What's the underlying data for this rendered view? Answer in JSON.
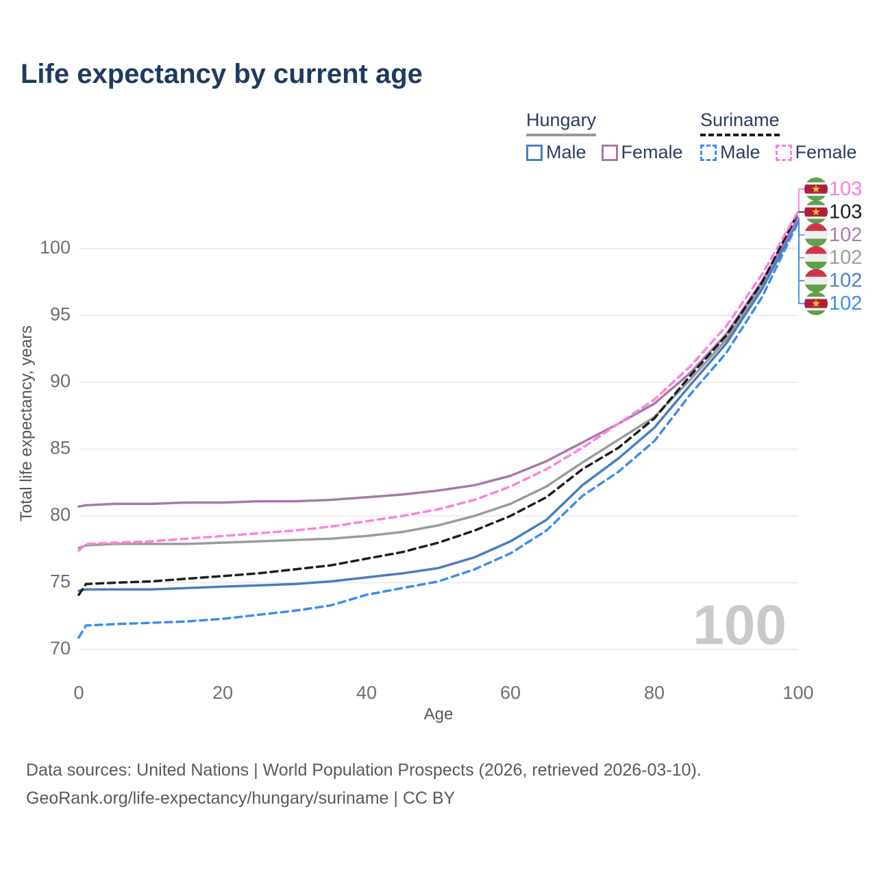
{
  "title": "Life expectancy by current age",
  "legend": {
    "groups": [
      {
        "label": "Hungary",
        "line_style": "solid",
        "underline_color": "#999999",
        "items": [
          {
            "label": "Male",
            "color": "#4a7cc0"
          },
          {
            "label": "Female",
            "color": "#a878ac"
          }
        ]
      },
      {
        "label": "Suriname",
        "line_style": "dashed",
        "underline_color": "#1b1b1b",
        "items": [
          {
            "label": "Male",
            "color": "#3d8cf2"
          },
          {
            "label": "Female",
            "color": "#ff80df"
          }
        ]
      }
    ]
  },
  "axes": {
    "y": {
      "title": "Total life expectancy, years",
      "ticks": [
        70,
        75,
        80,
        85,
        90,
        95,
        100
      ],
      "range": [
        68.5,
        103.5
      ],
      "grid": true
    },
    "x": {
      "title": "Age",
      "ticks": [
        0,
        20,
        40,
        60,
        80,
        100
      ],
      "range": [
        0,
        100
      ],
      "grid": false
    }
  },
  "watermark": "100",
  "chart_data": {
    "type": "line",
    "x_label": "Age",
    "y_label": "Total life expectancy, years",
    "x": [
      0,
      1,
      5,
      10,
      15,
      20,
      25,
      30,
      35,
      40,
      45,
      50,
      55,
      60,
      65,
      70,
      75,
      80,
      85,
      90,
      95,
      100
    ],
    "series": [
      {
        "name": "Hungary Total",
        "country": "Hungary",
        "sex": "Total",
        "color": "#9b9b9b",
        "dashed": false,
        "values": [
          77.6,
          77.8,
          77.9,
          77.9,
          77.9,
          78.0,
          78.1,
          78.2,
          78.3,
          78.5,
          78.8,
          79.3,
          80.0,
          80.9,
          82.2,
          84.0,
          85.7,
          87.4,
          90.2,
          93.2,
          97.3,
          102.2
        ]
      },
      {
        "name": "Hungary Male",
        "country": "Hungary",
        "sex": "Male",
        "color": "#4a7cc0",
        "dashed": false,
        "values": [
          74.4,
          74.5,
          74.5,
          74.5,
          74.6,
          74.7,
          74.8,
          74.9,
          75.1,
          75.4,
          75.7,
          76.1,
          76.9,
          78.1,
          79.7,
          82.3,
          84.3,
          86.6,
          89.8,
          92.9,
          97.0,
          102.15
        ]
      },
      {
        "name": "Hungary Female",
        "country": "Hungary",
        "sex": "Female",
        "color": "#a878ac",
        "dashed": false,
        "values": [
          80.7,
          80.8,
          80.9,
          80.9,
          81.0,
          81.0,
          81.1,
          81.1,
          81.2,
          81.4,
          81.6,
          81.9,
          82.3,
          83.0,
          84.1,
          85.5,
          86.9,
          88.4,
          90.7,
          93.6,
          97.6,
          102.3
        ]
      },
      {
        "name": "Suriname Male",
        "country": "Suriname",
        "sex": "Male",
        "color": "#3d8cf2",
        "dashed": true,
        "values": [
          70.9,
          71.8,
          71.9,
          72.0,
          72.1,
          72.3,
          72.6,
          72.9,
          73.3,
          74.1,
          74.6,
          75.1,
          76.0,
          77.2,
          78.9,
          81.5,
          83.3,
          85.6,
          89.1,
          92.2,
          96.4,
          102.0
        ]
      },
      {
        "name": "Suriname Total",
        "country": "Suriname",
        "sex": "Total",
        "color": "#1e1e1e",
        "dashed": true,
        "values": [
          74.1,
          74.9,
          75.0,
          75.1,
          75.3,
          75.5,
          75.7,
          76.0,
          76.3,
          76.8,
          77.3,
          78.0,
          78.9,
          80.0,
          81.4,
          83.5,
          85.1,
          87.3,
          90.5,
          93.5,
          97.5,
          102.7
        ]
      },
      {
        "name": "Suriname Female",
        "country": "Suriname",
        "sex": "Female",
        "color": "#ff80df",
        "dashed": true,
        "values": [
          77.4,
          77.9,
          78.0,
          78.1,
          78.3,
          78.5,
          78.7,
          78.9,
          79.2,
          79.6,
          80.0,
          80.5,
          81.2,
          82.2,
          83.5,
          85.1,
          86.9,
          88.7,
          91.2,
          94.2,
          98.1,
          102.8
        ]
      }
    ],
    "title": "Life expectancy by current age",
    "legend_position": "top-right"
  },
  "end_labels": [
    {
      "series": "Suriname Female",
      "flag": "suriname",
      "value": "103",
      "color": "#ff7bde"
    },
    {
      "series": "Suriname Total",
      "flag": "suriname",
      "value": "103",
      "color": "#1c1c1c"
    },
    {
      "series": "Hungary Female",
      "flag": "hungary",
      "value": "102",
      "color": "#a87fb0"
    },
    {
      "series": "Hungary Total",
      "flag": "hungary",
      "value": "102",
      "color": "#9e9e9e"
    },
    {
      "series": "Hungary Male",
      "flag": "hungary",
      "value": "102",
      "color": "#4f7fc4"
    },
    {
      "series": "Suriname Male",
      "flag": "suriname",
      "value": "102",
      "color": "#3f8cf0"
    }
  ],
  "flags": {
    "hungary": {
      "red": "#d2354a",
      "white": "#efefef",
      "green": "#5fa04b"
    },
    "suriname": {
      "green": "#5fa04b",
      "white": "#efefef",
      "red": "#b01e3e",
      "star": "#efc319"
    }
  },
  "footer": {
    "line1": "Data sources: United Nations | World Population Prospects (2026, retrieved 2026-03-10).",
    "line2": "GeoRank.org/life-expectancy/hungary/suriname | CC BY"
  }
}
